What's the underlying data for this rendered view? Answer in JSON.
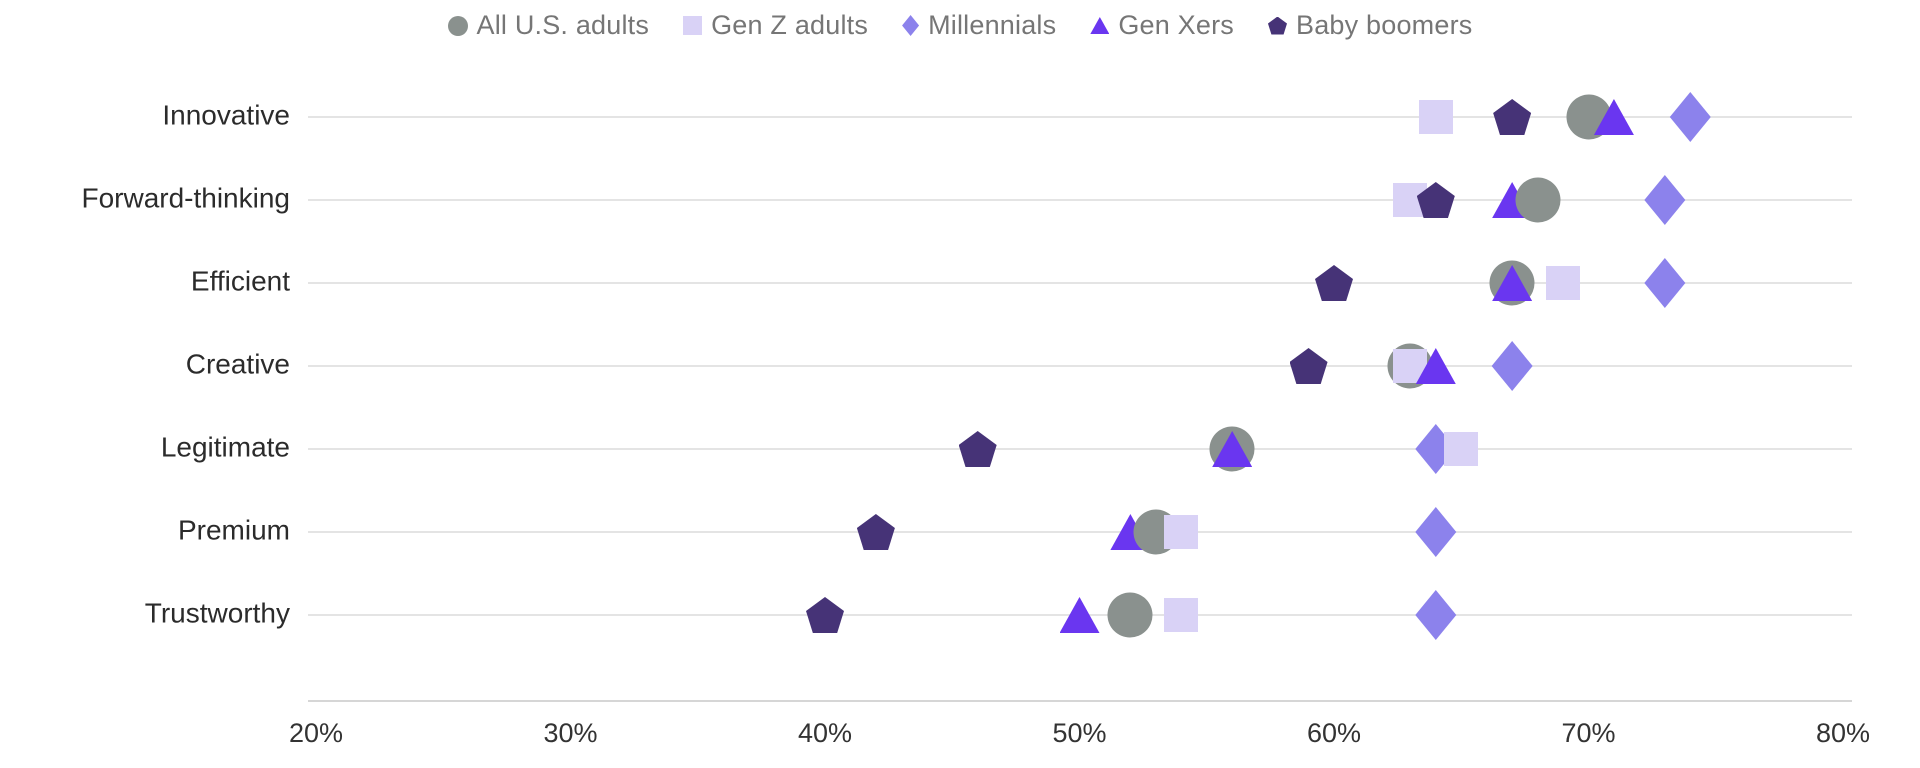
{
  "chart_data": {
    "type": "scatter",
    "title": "",
    "subtitle": "",
    "categories": [
      "Innovative",
      "Forward-thinking",
      "Efficient",
      "Creative",
      "Legitimate",
      "Premium",
      "Trustworthy"
    ],
    "series": [
      {
        "name": "All U.S. adults",
        "marker": "circle",
        "color": "#8a918e",
        "values": [
          70,
          68,
          67,
          63,
          56,
          53,
          52
        ]
      },
      {
        "name": "Gen Z adults",
        "marker": "square",
        "color": "#d9d2f6",
        "values": [
          64,
          63,
          69,
          63,
          65,
          54,
          54
        ]
      },
      {
        "name": "Millennials",
        "marker": "diamond",
        "color": "#8c82ec",
        "values": [
          74,
          73,
          73,
          67,
          64,
          64,
          64
        ]
      },
      {
        "name": "Gen Xers",
        "marker": "triangle",
        "color": "#6a36f0",
        "values": [
          71,
          67,
          67,
          64,
          56,
          52,
          50
        ]
      },
      {
        "name": "Baby boomers",
        "marker": "pentagon",
        "color": "#463377",
        "values": [
          67,
          64,
          60,
          59,
          46,
          42,
          40
        ]
      }
    ],
    "x_axis": {
      "min": 20,
      "max": 80,
      "tick_step": 10,
      "tick_values": [
        20,
        30,
        40,
        50,
        60,
        70,
        80
      ],
      "tick_labels": [
        "20%",
        "30%",
        "40%",
        "50%",
        "60%",
        "70%",
        "80%"
      ]
    },
    "y_axis": {
      "label": ""
    },
    "legend_position": "top-center",
    "grid": "horizontal-category-lines"
  },
  "colors": {
    "background": "#ffffff",
    "grid_line": "#e4e4e4",
    "axis_line": "#d6d6d6",
    "category_label": "#2b2b2b",
    "tick_label": "#333333",
    "legend_text": "#767676"
  }
}
